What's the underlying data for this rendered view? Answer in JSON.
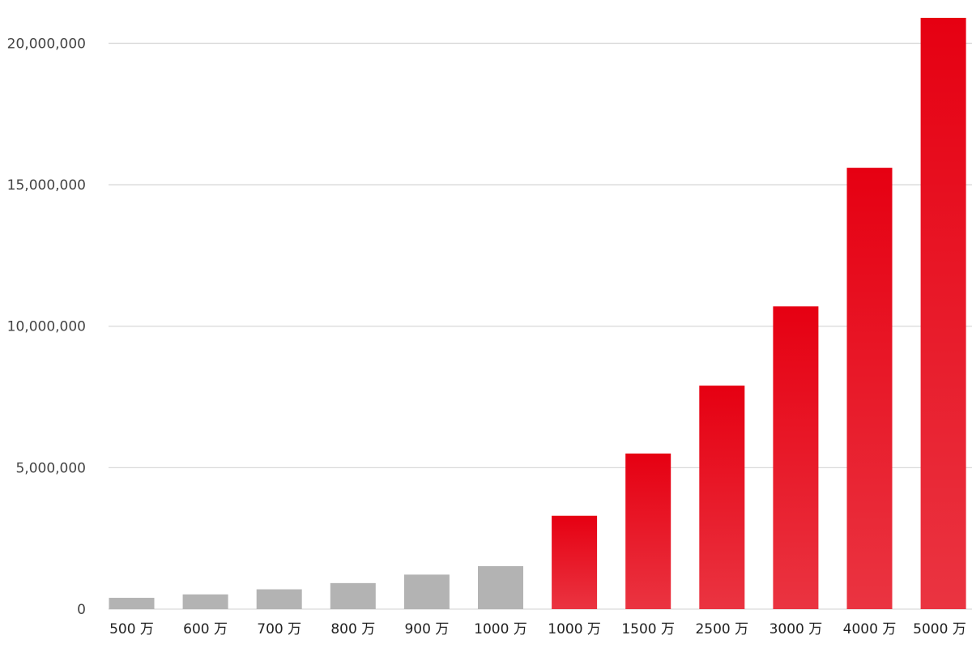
{
  "chart_data": {
    "type": "bar",
    "title": "",
    "xlabel": "",
    "ylabel": "",
    "categories": [
      "500 万",
      "600 万",
      "700 万",
      "800 万",
      "900 万",
      "1000 万",
      "1000 万",
      "1500 万",
      "2500 万",
      "3000 万",
      "4000 万",
      "5000 万"
    ],
    "values": [
      400000,
      520000,
      700000,
      920000,
      1220000,
      1520000,
      3300000,
      5500000,
      7900000,
      10700000,
      15600000,
      20900000
    ],
    "ylim": [
      0,
      20900000
    ],
    "yticks": [
      0,
      5000000,
      10000000,
      15000000,
      20000000
    ],
    "ytick_labels": [
      "0",
      "5,000,000",
      "10,000,000",
      "15,000,000",
      "20,000,000"
    ],
    "grid": true,
    "legend": "none",
    "bar_colors": [
      "#b3b3b3",
      "#b3b3b3",
      "#b3b3b3",
      "#b3b3b3",
      "#b3b3b3",
      "#b3b3b3",
      "#e60012",
      "#e60012",
      "#e60012",
      "#e60012",
      "#e60012",
      "#e60012"
    ],
    "colors": {
      "gray": "#b3b3b3",
      "red_top": "#e60012",
      "red_bottom": "#ea3441",
      "grid": "#d9d9d9"
    }
  }
}
